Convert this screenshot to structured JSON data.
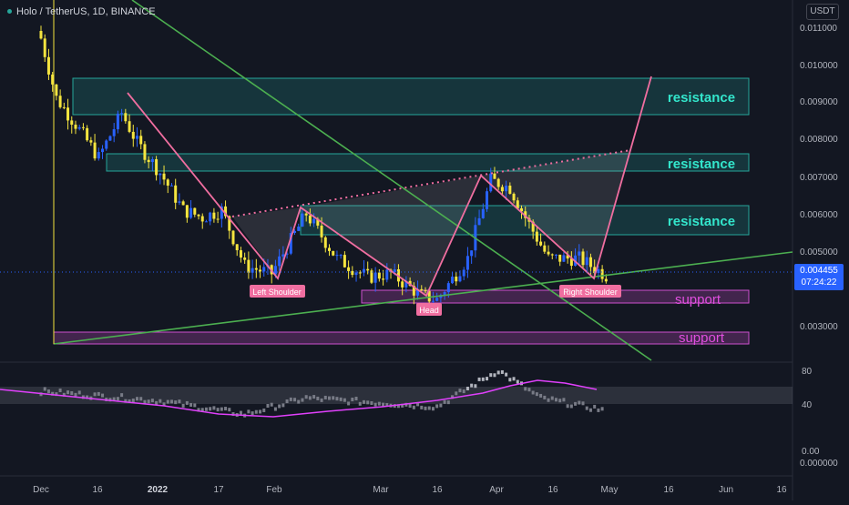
{
  "header": {
    "symbol": "Holo / TetherUS, 1D, BINANCE"
  },
  "price_axis": {
    "currency_button": "USDT",
    "current_price": "0.004455",
    "countdown": "07:24:22"
  },
  "annotations": {
    "resistance_1": "resistance",
    "resistance_2": "resistance",
    "resistance_3": "resistance",
    "support_1": "support",
    "support_2": "support",
    "left_shoulder": "Left Shoulder",
    "head": "Head",
    "right_shoulder": "Right Shoulder"
  },
  "colors": {
    "background": "#131722",
    "up_candle": "#2962ff",
    "down_candle": "#f5e53f",
    "resistance_zone": "#26a69a",
    "resistance_text": "#33e6cc",
    "support_zone": "#ce50ce",
    "support_text": "#e14fe0",
    "pattern_line": "#f06ea0",
    "trend_line": "#4caf50",
    "indicator_line": "#e040fb",
    "price_tag": "#2962ff"
  },
  "chart_data": [
    {
      "type": "candlestick",
      "title": "Holo / TetherUS, 1D, BINANCE",
      "y_ticks": [
        "0.011000",
        "0.010000",
        "0.009000",
        "0.008000",
        "0.007000",
        "0.006000",
        "0.005000",
        "0.003000"
      ],
      "x_ticks": [
        "Dec",
        "16",
        "2022",
        "17",
        "Feb",
        "Mar",
        "16",
        "Apr",
        "16",
        "May",
        "16",
        "Jun",
        "16"
      ],
      "approx_close_path": [
        {
          "date": "2021-12-01",
          "close": 0.0108
        },
        {
          "date": "2021-12-05",
          "close": 0.0092
        },
        {
          "date": "2021-12-10",
          "close": 0.0085
        },
        {
          "date": "2021-12-16",
          "close": 0.0076
        },
        {
          "date": "2021-12-22",
          "close": 0.0088
        },
        {
          "date": "2021-12-26",
          "close": 0.008
        },
        {
          "date": "2022-01-01",
          "close": 0.0072
        },
        {
          "date": "2022-01-07",
          "close": 0.0062
        },
        {
          "date": "2022-01-12",
          "close": 0.006
        },
        {
          "date": "2022-01-17",
          "close": 0.0062
        },
        {
          "date": "2022-01-23",
          "close": 0.0047
        },
        {
          "date": "2022-01-30",
          "close": 0.0045
        },
        {
          "date": "2022-02-08",
          "close": 0.0061
        },
        {
          "date": "2022-02-16",
          "close": 0.0049
        },
        {
          "date": "2022-02-24",
          "close": 0.0044
        },
        {
          "date": "2022-03-02",
          "close": 0.0045
        },
        {
          "date": "2022-03-10",
          "close": 0.0039
        },
        {
          "date": "2022-03-14",
          "close": 0.0038
        },
        {
          "date": "2022-03-22",
          "close": 0.0049
        },
        {
          "date": "2022-03-28",
          "close": 0.007
        },
        {
          "date": "2022-04-02",
          "close": 0.0068
        },
        {
          "date": "2022-04-06",
          "close": 0.006
        },
        {
          "date": "2022-04-12",
          "close": 0.0049
        },
        {
          "date": "2022-04-20",
          "close": 0.0049
        },
        {
          "date": "2022-04-27",
          "close": 0.00445
        }
      ],
      "current_price": 0.004455,
      "resistance_zones": [
        [
          0.0087,
          0.0095
        ],
        [
          0.0072,
          0.0075
        ],
        [
          0.0054,
          0.006
        ]
      ],
      "support_zones": [
        [
          0.00385,
          0.00405
        ],
        [
          0.0026,
          0.0028
        ]
      ],
      "pattern": "head and shoulders (inverse)",
      "pattern_labels": [
        "Left Shoulder",
        "Head",
        "Right Shoulder"
      ]
    },
    {
      "type": "line",
      "title": "",
      "y_ticks": [
        "80",
        "40",
        "0.00"
      ],
      "ylim": [
        0,
        100
      ],
      "note_values": "oscillator with signal line; band 40–60",
      "approx_values": [
        {
          "date": "2021-12-01",
          "value": 57
        },
        {
          "date": "2022-01-01",
          "value": 47
        },
        {
          "date": "2022-01-23",
          "value": 33
        },
        {
          "date": "2022-02-08",
          "value": 50
        },
        {
          "date": "2022-03-14",
          "value": 41
        },
        {
          "date": "2022-03-30",
          "value": 79
        },
        {
          "date": "2022-04-10",
          "value": 50
        },
        {
          "date": "2022-04-27",
          "value": 37
        }
      ]
    }
  ],
  "bottom_axis_extra": "0.000000"
}
